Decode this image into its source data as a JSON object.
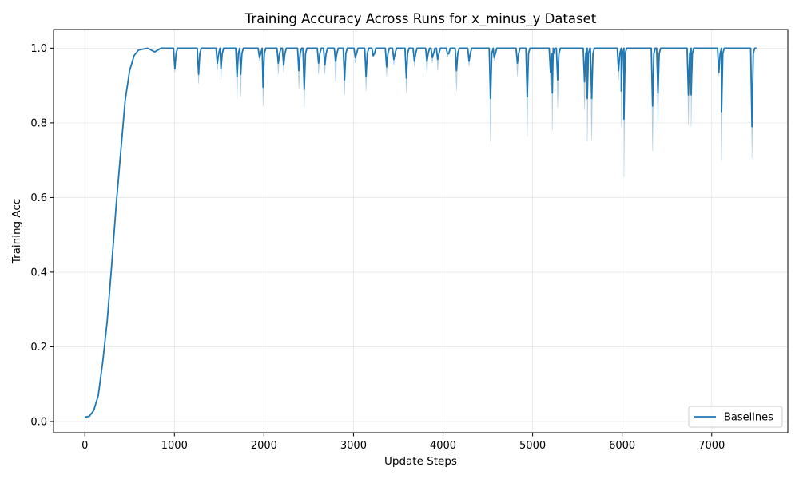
{
  "chart_data": {
    "type": "line",
    "title": "Training Accuracy Across Runs for x_minus_y Dataset",
    "xlabel": "Update Steps",
    "ylabel": "Training Acc",
    "xlim": [
      -350,
      7850
    ],
    "ylim": [
      -0.03,
      1.05
    ],
    "xticks": [
      0,
      1000,
      2000,
      3000,
      4000,
      5000,
      6000,
      7000
    ],
    "yticks": [
      0.0,
      0.2,
      0.4,
      0.6,
      0.8,
      1.0
    ],
    "xtick_labels": [
      "0",
      "1000",
      "2000",
      "3000",
      "4000",
      "5000",
      "6000",
      "7000"
    ],
    "ytick_labels": [
      "0.0",
      "0.2",
      "0.4",
      "0.6",
      "0.8",
      "1.0"
    ],
    "grid": true,
    "legend_position": "lower-right",
    "series": [
      {
        "name": "Baselines",
        "color": "#1f77b4",
        "ramp": [
          [
            0,
            0.012
          ],
          [
            50,
            0.014
          ],
          [
            100,
            0.03
          ],
          [
            150,
            0.07
          ],
          [
            200,
            0.16
          ],
          [
            250,
            0.27
          ],
          [
            300,
            0.42
          ],
          [
            350,
            0.58
          ],
          [
            400,
            0.72
          ],
          [
            450,
            0.86
          ],
          [
            500,
            0.94
          ],
          [
            550,
            0.98
          ],
          [
            600,
            0.995
          ],
          [
            700,
            1.0
          ],
          [
            780,
            0.99
          ],
          [
            850,
            1.0
          ],
          [
            990,
            1.0
          ]
        ],
        "end_x": 7500,
        "dips": [
          [
            1005,
            0.945,
            0.935
          ],
          [
            1270,
            0.93,
            0.905
          ],
          [
            1480,
            0.96,
            0.94
          ],
          [
            1520,
            0.945,
            0.915
          ],
          [
            1700,
            0.925,
            0.865
          ],
          [
            1740,
            0.93,
            0.87
          ],
          [
            1950,
            0.975,
            0.965
          ],
          [
            1990,
            0.895,
            0.845
          ],
          [
            2160,
            0.96,
            0.93
          ],
          [
            2220,
            0.955,
            0.935
          ],
          [
            2390,
            0.94,
            0.89
          ],
          [
            2450,
            0.89,
            0.84
          ],
          [
            2610,
            0.96,
            0.93
          ],
          [
            2680,
            0.955,
            0.93
          ],
          [
            2800,
            0.965,
            0.91
          ],
          [
            2900,
            0.915,
            0.875
          ],
          [
            3020,
            0.975,
            0.96
          ],
          [
            3140,
            0.925,
            0.885
          ],
          [
            3220,
            0.98,
            0.975
          ],
          [
            3370,
            0.95,
            0.925
          ],
          [
            3450,
            0.97,
            0.955
          ],
          [
            3590,
            0.92,
            0.88
          ],
          [
            3680,
            0.965,
            0.95
          ],
          [
            3820,
            0.965,
            0.93
          ],
          [
            3880,
            0.975,
            0.96
          ],
          [
            3940,
            0.97,
            0.94
          ],
          [
            4050,
            0.985,
            0.975
          ],
          [
            4150,
            0.94,
            0.885
          ],
          [
            4290,
            0.965,
            0.95
          ],
          [
            4530,
            0.865,
            0.75
          ],
          [
            4570,
            0.975,
            0.965
          ],
          [
            4830,
            0.96,
            0.925
          ],
          [
            4940,
            0.87,
            0.765
          ],
          [
            5200,
            0.935,
            0.9
          ],
          [
            5220,
            0.88,
            0.78
          ],
          [
            5280,
            0.915,
            0.84
          ],
          [
            5580,
            0.91,
            0.835
          ],
          [
            5610,
            0.865,
            0.75
          ],
          [
            5660,
            0.865,
            0.755
          ],
          [
            5960,
            0.94,
            0.915
          ],
          [
            5990,
            0.885,
            0.79
          ],
          [
            6020,
            0.81,
            0.655
          ],
          [
            6340,
            0.845,
            0.725
          ],
          [
            6400,
            0.88,
            0.78
          ],
          [
            6740,
            0.875,
            0.795
          ],
          [
            6770,
            0.875,
            0.79
          ],
          [
            7080,
            0.935,
            0.925
          ],
          [
            7110,
            0.83,
            0.7
          ],
          [
            7450,
            0.79,
            0.705
          ]
        ]
      }
    ]
  }
}
